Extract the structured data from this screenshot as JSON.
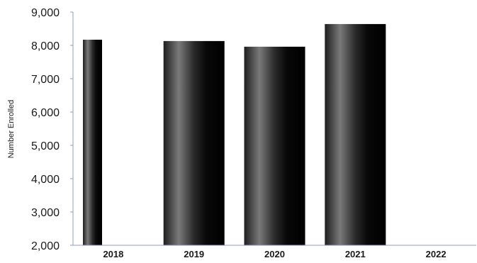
{
  "chart_data": {
    "type": "bar",
    "categories": [
      "2018",
      "2019",
      "2020",
      "2021",
      "2022"
    ],
    "values": [
      8170,
      8130,
      7960,
      8640,
      null
    ],
    "title": "",
    "xlabel": "",
    "ylabel": "Number Enrolled",
    "ylim": [
      2000,
      9000
    ],
    "yticks": [
      2000,
      3000,
      4000,
      5000,
      6000,
      7000,
      8000,
      9000
    ],
    "ytick_labels": [
      "2,000",
      "3,000",
      "4,000",
      "5,000",
      "6,000",
      "7,000",
      "8,000",
      "9,000"
    ],
    "grid": false,
    "legend": "none",
    "colors": {
      "bar_dark": "#0a0a0a",
      "bar_light": "#7a7a7a",
      "axis": "#8e9ec2"
    }
  }
}
